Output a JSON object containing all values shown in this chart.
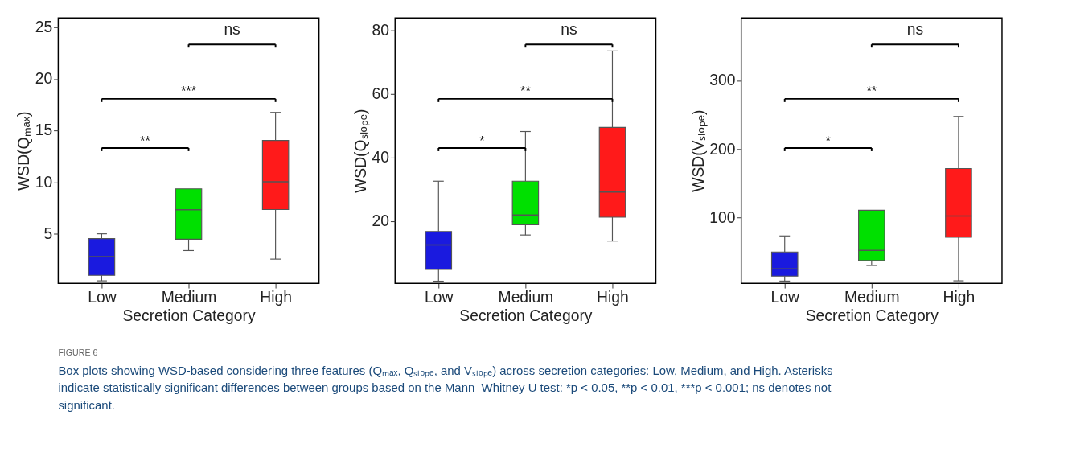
{
  "chart_data": [
    {
      "type": "box",
      "xlabel": "Secretion Category",
      "ylabel": "WSD(Qₘₐₓ)",
      "categories": [
        "Low",
        "Medium",
        "High"
      ],
      "colors": [
        "#1a1adf",
        "#00e000",
        "#ff1a1a"
      ],
      "ylim": [
        0.2,
        25.9
      ],
      "yticks": [
        5,
        10,
        15,
        20,
        25
      ],
      "grid": false,
      "boxes": [
        {
          "low": 0.45,
          "q1": 0.98,
          "median": 2.8,
          "q3": 4.53,
          "high": 5.0
        },
        {
          "low": 3.38,
          "q1": 4.48,
          "median": 7.33,
          "q3": 9.35,
          "high": 9.35
        },
        {
          "low": 2.55,
          "q1": 7.35,
          "median": 10.03,
          "q3": 14.03,
          "high": 16.75
        }
      ],
      "annotations": [
        "**",
        "***",
        "ns"
      ]
    },
    {
      "type": "box",
      "xlabel": "Secretion Category",
      "ylabel": "WSD(Qₛₗₒₚₑ)",
      "categories": [
        "Low",
        "Medium",
        "High"
      ],
      "colors": [
        "#1a1adf",
        "#00e000",
        "#ff1a1a"
      ],
      "ylim": [
        0.4,
        83.8
      ],
      "yticks": [
        20,
        40,
        60,
        80
      ],
      "grid": false,
      "boxes": [
        {
          "low": 1.1,
          "q1": 4.8,
          "median": 12.5,
          "q3": 16.7,
          "high": 32.5
        },
        {
          "low": 15.6,
          "q1": 18.8,
          "median": 21.9,
          "q3": 32.5,
          "high": 48.1
        },
        {
          "low": 13.7,
          "q1": 21.2,
          "median": 29.1,
          "q3": 49.4,
          "high": 73.4
        }
      ],
      "annotations": [
        "*",
        "**",
        "ns"
      ]
    },
    {
      "type": "box",
      "xlabel": "Secretion Category",
      "ylabel": "WSD(Vₛₗₒₚₑ)",
      "categories": [
        "Low",
        "Medium",
        "High"
      ],
      "colors": [
        "#1a1adf",
        "#00e000",
        "#ff1a1a"
      ],
      "ylim": [
        4.5,
        391
      ],
      "yticks": [
        100,
        200,
        300
      ],
      "grid": false,
      "boxes": [
        {
          "low": 7.9,
          "q1": 15.1,
          "median": 25.7,
          "q3": 50.2,
          "high": 73.6
        },
        {
          "low": 30.6,
          "q1": 37.7,
          "median": 52.5,
          "q3": 110.9,
          "high": 110.9
        },
        {
          "low": 8.3,
          "q1": 71.7,
          "median": 102.6,
          "q3": 171.7,
          "high": 247.5
        }
      ],
      "annotations": [
        "*",
        "**",
        "ns"
      ]
    },
    {
      "type": "other",
      "title": "FIGURE 6",
      "annotations": [
        "Box plots showing WSD-based considering three features (Qₘₐₓ, Qₛₗₒₚₑ, and Vₛₗₒₚₑ) across secretion categories: Low, Medium, and High. Asterisks indicate statistically significant differences between groups based on the Mann–Whitney U test: *p < 0.05, **p < 0.01, ***p < 0.001; ns denotes not significant."
      ]
    }
  ]
}
